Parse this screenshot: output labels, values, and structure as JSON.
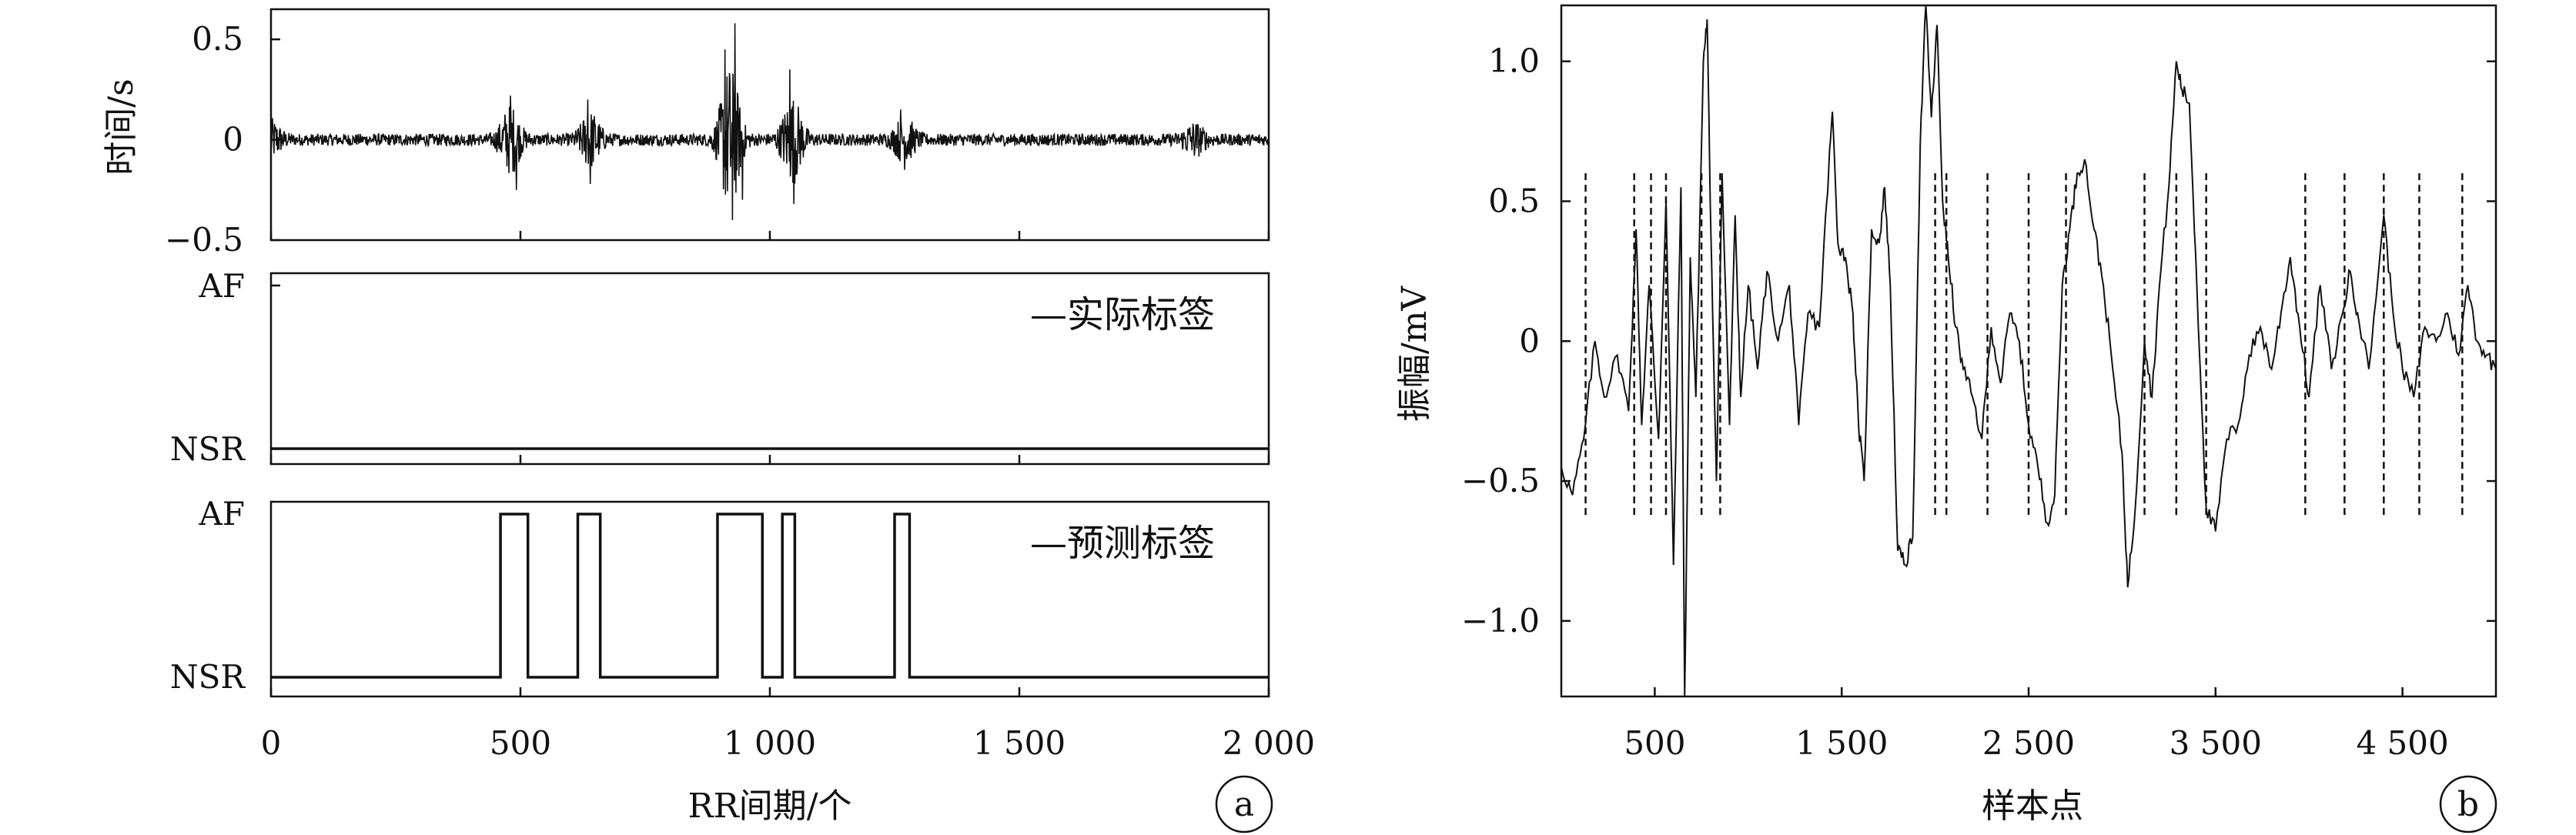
{
  "chart_data": [
    {
      "panel": "a",
      "type": "line",
      "panel_letter": "a",
      "xlabel": "RR间期/个",
      "xlim": [
        0,
        2000
      ],
      "xticks": [
        0,
        500,
        1000,
        1500,
        2000
      ],
      "xtick_labels": [
        "0",
        "500",
        "1 000",
        "1 500",
        "2 000"
      ],
      "subplots": [
        {
          "name": "rr-signal",
          "ylabel": "时间/s",
          "ylim": [
            -0.5,
            0.65
          ],
          "yticks": [
            0.5,
            0,
            -0.5
          ],
          "ytick_labels": [
            "0.5",
            "0",
            "−0.5"
          ],
          "noise_base": 0.03,
          "bursts": [
            {
              "x": 0,
              "amp": 0.08
            },
            {
              "x": 480,
              "amp": 0.15
            },
            {
              "x": 640,
              "amp": 0.12
            },
            {
              "x": 920,
              "amp": 0.35
            },
            {
              "x": 1045,
              "amp": 0.2
            },
            {
              "x": 1270,
              "amp": 0.1
            },
            {
              "x": 1850,
              "amp": 0.07
            }
          ],
          "peaks": [
            {
              "x": 0,
              "y": 0.1
            },
            {
              "x": 480,
              "y": 0.22
            },
            {
              "x": 492,
              "y": -0.25
            },
            {
              "x": 635,
              "y": 0.2
            },
            {
              "x": 640,
              "y": -0.22
            },
            {
              "x": 910,
              "y": 0.45
            },
            {
              "x": 930,
              "y": 0.58
            },
            {
              "x": 925,
              "y": -0.4
            },
            {
              "x": 945,
              "y": -0.3
            },
            {
              "x": 1040,
              "y": 0.35
            },
            {
              "x": 1048,
              "y": -0.32
            },
            {
              "x": 1262,
              "y": 0.15
            },
            {
              "x": 1270,
              "y": -0.15
            }
          ]
        },
        {
          "name": "actual-label",
          "ylim": [
            0,
            1
          ],
          "ytick_labels": [
            "AF",
            "NSR"
          ],
          "legend": "—实际标签",
          "segments": [
            {
              "from": 0,
              "to": 2000,
              "state": "NSR"
            }
          ]
        },
        {
          "name": "predicted-label",
          "ylim": [
            0,
            1
          ],
          "ytick_labels": [
            "AF",
            "NSR"
          ],
          "legend": "—预测标签",
          "af_intervals": [
            [
              460,
              515
            ],
            [
              615,
              660
            ],
            [
              895,
              985
            ],
            [
              1025,
              1050
            ],
            [
              1250,
              1280
            ]
          ]
        }
      ]
    },
    {
      "panel": "b",
      "type": "line",
      "panel_letter": "b",
      "xlabel": "样本点",
      "ylabel": "振幅/mV",
      "xlim": [
        0,
        5000
      ],
      "ylim": [
        -1.27,
        1.2
      ],
      "xticks": [
        500,
        1500,
        2500,
        3500,
        4500
      ],
      "xtick_labels": [
        "500",
        "1 500",
        "2 500",
        "3 500",
        "4 500"
      ],
      "yticks": [
        1.0,
        0.5,
        0,
        -0.5,
        -1.0
      ],
      "ytick_labels": [
        "1.0",
        "0.5",
        "0",
        "−0.5",
        "−1.0"
      ],
      "r_peak_markers": [
        130,
        390,
        480,
        560,
        750,
        850,
        2000,
        2060,
        2280,
        2500,
        2700,
        3120,
        3290,
        3450,
        3980,
        4190,
        4400,
        4590,
        4820
      ],
      "marker_range": [
        -0.63,
        0.6
      ],
      "waveform": [
        [
          0,
          -0.45
        ],
        [
          60,
          -0.55
        ],
        [
          120,
          -0.35
        ],
        [
          180,
          0.0
        ],
        [
          230,
          -0.2
        ],
        [
          300,
          -0.05
        ],
        [
          360,
          -0.25
        ],
        [
          400,
          0.4
        ],
        [
          430,
          -0.3
        ],
        [
          470,
          0.2
        ],
        [
          520,
          -0.35
        ],
        [
          560,
          0.5
        ],
        [
          600,
          -0.8
        ],
        [
          640,
          0.55
        ],
        [
          660,
          -1.27
        ],
        [
          690,
          0.3
        ],
        [
          720,
          -0.2
        ],
        [
          760,
          1.0
        ],
        [
          780,
          1.15
        ],
        [
          800,
          0.4
        ],
        [
          830,
          -0.5
        ],
        [
          860,
          0.6
        ],
        [
          900,
          -0.3
        ],
        [
          930,
          0.45
        ],
        [
          960,
          -0.2
        ],
        [
          1000,
          0.2
        ],
        [
          1050,
          -0.1
        ],
        [
          1100,
          0.25
        ],
        [
          1160,
          0.0
        ],
        [
          1220,
          0.2
        ],
        [
          1270,
          -0.3
        ],
        [
          1320,
          0.1
        ],
        [
          1380,
          0.05
        ],
        [
          1420,
          0.5
        ],
        [
          1450,
          0.82
        ],
        [
          1480,
          0.35
        ],
        [
          1520,
          0.3
        ],
        [
          1560,
          0.1
        ],
        [
          1590,
          -0.3
        ],
        [
          1620,
          -0.5
        ],
        [
          1660,
          0.4
        ],
        [
          1700,
          0.35
        ],
        [
          1730,
          0.55
        ],
        [
          1760,
          0.2
        ],
        [
          1800,
          -0.75
        ],
        [
          1840,
          -0.8
        ],
        [
          1880,
          -0.7
        ],
        [
          1920,
          0.7
        ],
        [
          1950,
          1.2
        ],
        [
          1980,
          0.8
        ],
        [
          2010,
          1.13
        ],
        [
          2040,
          0.5
        ],
        [
          2070,
          0.3
        ],
        [
          2110,
          0.05
        ],
        [
          2150,
          -0.1
        ],
        [
          2200,
          -0.2
        ],
        [
          2250,
          -0.35
        ],
        [
          2300,
          0.05
        ],
        [
          2350,
          -0.15
        ],
        [
          2400,
          0.1
        ],
        [
          2450,
          0.0
        ],
        [
          2500,
          -0.3
        ],
        [
          2550,
          -0.45
        ],
        [
          2600,
          -0.65
        ],
        [
          2640,
          -0.55
        ],
        [
          2680,
          0.2
        ],
        [
          2720,
          0.4
        ],
        [
          2760,
          0.6
        ],
        [
          2800,
          0.65
        ],
        [
          2850,
          0.4
        ],
        [
          2900,
          0.2
        ],
        [
          2950,
          -0.1
        ],
        [
          3000,
          -0.4
        ],
        [
          3030,
          -0.88
        ],
        [
          3070,
          -0.6
        ],
        [
          3120,
          0.0
        ],
        [
          3160,
          -0.2
        ],
        [
          3200,
          0.2
        ],
        [
          3250,
          0.55
        ],
        [
          3290,
          1.0
        ],
        [
          3320,
          0.9
        ],
        [
          3360,
          0.85
        ],
        [
          3400,
          0.2
        ],
        [
          3450,
          -0.6
        ],
        [
          3500,
          -0.68
        ],
        [
          3560,
          -0.35
        ],
        [
          3620,
          -0.3
        ],
        [
          3680,
          -0.05
        ],
        [
          3740,
          0.05
        ],
        [
          3800,
          -0.1
        ],
        [
          3850,
          0.1
        ],
        [
          3900,
          0.3
        ],
        [
          3950,
          0.05
        ],
        [
          4000,
          -0.2
        ],
        [
          4060,
          0.2
        ],
        [
          4120,
          -0.1
        ],
        [
          4180,
          0.1
        ],
        [
          4220,
          0.25
        ],
        [
          4260,
          0.1
        ],
        [
          4320,
          -0.1
        ],
        [
          4400,
          0.45
        ],
        [
          4450,
          0.1
        ],
        [
          4500,
          -0.1
        ],
        [
          4560,
          -0.2
        ],
        [
          4620,
          0.05
        ],
        [
          4680,
          0.0
        ],
        [
          4740,
          0.1
        ],
        [
          4800,
          -0.05
        ],
        [
          4850,
          0.2
        ],
        [
          4900,
          0.0
        ],
        [
          4950,
          -0.05
        ],
        [
          5000,
          -0.1
        ]
      ]
    }
  ]
}
